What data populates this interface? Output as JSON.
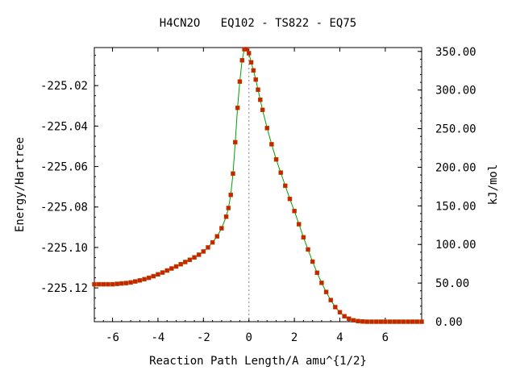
{
  "chart_data": {
    "type": "scatter",
    "title": "H4CN2O   EQ102 - TS822 - EQ75",
    "xlabel": "Reaction Path Length/A amu^{1/2}",
    "ylabel": "Energy/Hartree",
    "y2label": "kJ/mol",
    "xlim": [
      -6.8,
      7.6
    ],
    "ylim": [
      -225.1367,
      -225.0012
    ],
    "y2lim": [
      0,
      355
    ],
    "x_ticks": [
      "-6",
      "-4",
      "-2",
      "0",
      "2",
      "4",
      "6"
    ],
    "y_ticks": [
      "-225.02",
      "-225.04",
      "-225.06",
      "-225.08",
      "-225.10",
      "-225.12"
    ],
    "y2_ticks": [
      "0.00",
      "50.00",
      "100.00",
      "150.00",
      "200.00",
      "250.00",
      "300.00",
      "350.00"
    ],
    "ts_marker_x": 0,
    "grid": false,
    "legend": "none",
    "colors": {
      "curve": "#00a000",
      "points": "#cc2200",
      "ts_line": "#888888"
    },
    "series": [
      {
        "x": [
          -6.8,
          -6.6,
          -6.4,
          -6.2,
          -6.0,
          -5.8,
          -5.6,
          -5.4,
          -5.2,
          -5.0,
          -4.8,
          -4.6,
          -4.4,
          -4.2,
          -4.0,
          -3.8,
          -3.6,
          -3.4,
          -3.2,
          -3.0,
          -2.8,
          -2.6,
          -2.4,
          -2.2,
          -2.0,
          -1.8,
          -1.6,
          -1.4,
          -1.2,
          -1.0,
          -0.9,
          -0.8,
          -0.7,
          -0.6,
          -0.5,
          -0.4,
          -0.3,
          -0.2,
          -0.1,
          0.0,
          0.1,
          0.2,
          0.3,
          0.4,
          0.5,
          0.6,
          0.8,
          1.0,
          1.2,
          1.4,
          1.6,
          1.8,
          2.0,
          2.2,
          2.4,
          2.6,
          2.8,
          3.0,
          3.2,
          3.4,
          3.6,
          3.8,
          4.0,
          4.2,
          4.4,
          4.6,
          4.8,
          5.0,
          5.2,
          5.4,
          5.6,
          5.8,
          6.0,
          6.2,
          6.4,
          6.6,
          6.8,
          7.0,
          7.2,
          7.4,
          7.6
        ],
        "y": [
          -225.1182,
          -225.1182,
          -225.1182,
          -225.1182,
          -225.1182,
          -225.118,
          -225.1178,
          -225.1176,
          -225.1173,
          -225.1168,
          -225.1163,
          -225.1157,
          -225.115,
          -225.1142,
          -225.1133,
          -225.1124,
          -225.1114,
          -225.1104,
          -225.1094,
          -225.1083,
          -225.1072,
          -225.1061,
          -225.1049,
          -225.1036,
          -225.102,
          -225.1,
          -225.0975,
          -225.0945,
          -225.0905,
          -225.0848,
          -225.0805,
          -225.074,
          -225.0635,
          -225.048,
          -225.031,
          -225.018,
          -225.0075,
          -225.002,
          -225.002,
          -225.004,
          -225.0085,
          -225.0125,
          -225.017,
          -225.022,
          -225.027,
          -225.032,
          -225.041,
          -225.049,
          -225.0565,
          -225.063,
          -225.0695,
          -225.076,
          -225.082,
          -225.0885,
          -225.095,
          -225.101,
          -225.107,
          -225.1125,
          -225.1175,
          -225.122,
          -225.126,
          -225.1295,
          -225.132,
          -225.134,
          -225.1352,
          -225.136,
          -225.1364,
          -225.1366,
          -225.1367,
          -225.1367,
          -225.1367,
          -225.1367,
          -225.1367,
          -225.1367,
          -225.1367,
          -225.1367,
          -225.1367,
          -225.1367,
          -225.1367,
          -225.1367,
          -225.1367
        ]
      }
    ]
  }
}
